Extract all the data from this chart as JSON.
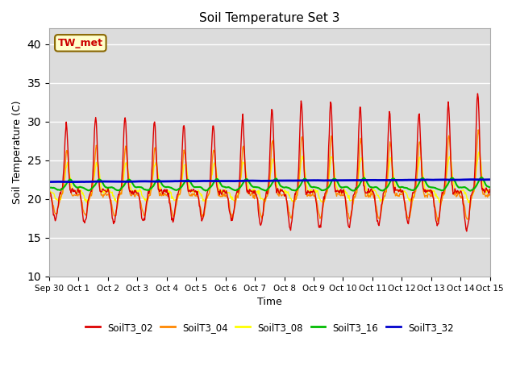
{
  "title": "Soil Temperature Set 3",
  "xlabel": "Time",
  "ylabel": "Soil Temperature (C)",
  "ylim": [
    10,
    42
  ],
  "yticks": [
    10,
    15,
    20,
    25,
    30,
    35,
    40
  ],
  "background_color": "#dcdcdc",
  "series": {
    "SoilT3_02": {
      "color": "#dd0000",
      "linewidth": 1.0
    },
    "SoilT3_04": {
      "color": "#ff8800",
      "linewidth": 1.0
    },
    "SoilT3_08": {
      "color": "#ffff00",
      "linewidth": 1.0
    },
    "SoilT3_16": {
      "color": "#00bb00",
      "linewidth": 1.5
    },
    "SoilT3_32": {
      "color": "#0000cc",
      "linewidth": 2.0
    }
  },
  "annotation_text": "TW_met",
  "annotation_color": "#cc0000",
  "annotation_bg": "#ffffcc",
  "annotation_border": "#886600",
  "n_days": 16,
  "peak_hour_02": 14,
  "peak_hour_04": 14,
  "peak_hour_08": 15,
  "peak_hour_16": 17,
  "peak_hour_32": 20,
  "base_02": 21.0,
  "base_04": 20.5,
  "base_08": 21.0,
  "base_16": 21.5,
  "base_32": 22.2
}
